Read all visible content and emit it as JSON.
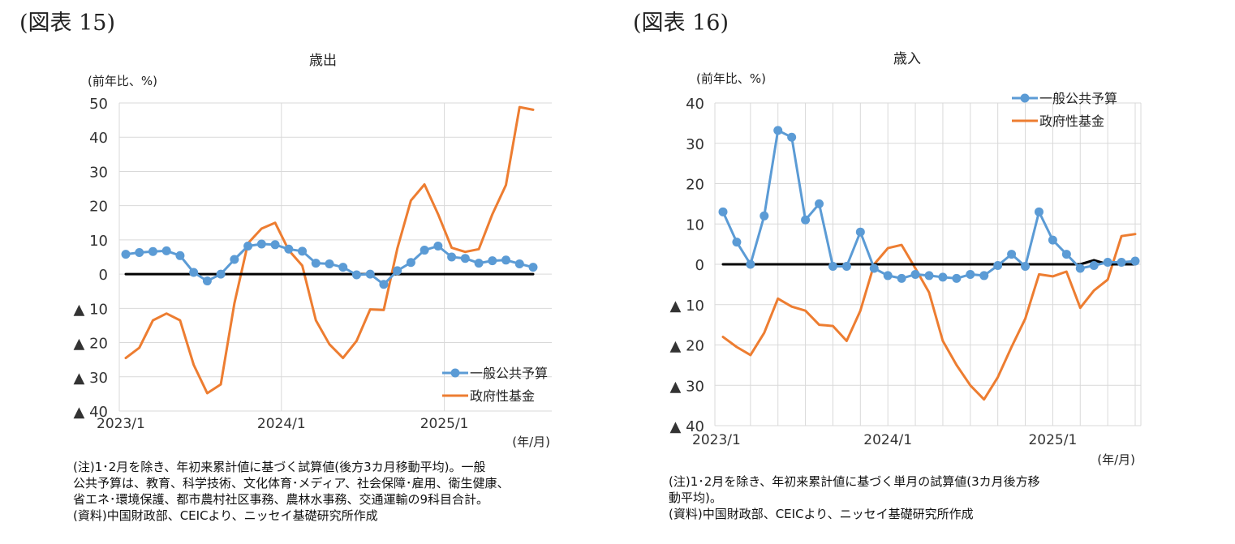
{
  "charts": [
    {
      "figure_label": "(図表 15)",
      "notes": [
        "(注)1･2月を除き、年初来累計値に基づく試算値(後方3カ月移動平均)。一般",
        "公共予算は、教育、科学技術、文化体育･メディア、社会保障･雇用、衛生健康、",
        "省エネ･環境保護、都市農村社区事務、農林水事務、交通運輸の9科目合計。",
        "(資料)中国財政部、CEICより、ニッセイ基礎研究所作成"
      ]
    },
    {
      "figure_label": "(図表 16)",
      "notes": [
        "(注)1･2月を除き、年初来累計値に基づく単月の試算値(3カ月後方移",
        "動平均)。",
        "(資料)中国財政部、CEICより、ニッセイ基礎研究所作成"
      ]
    }
  ],
  "chart_data": [
    {
      "type": "line",
      "title": "歳出",
      "ylabel": "(前年比、%)",
      "xlabel": "(年/月)",
      "ylim": [
        -40,
        50
      ],
      "yticks": [
        50,
        40,
        30,
        20,
        10,
        0,
        -10,
        -20,
        -30,
        -40
      ],
      "ytick_labels": [
        "50",
        "40",
        "30",
        "20",
        "10",
        "0",
        "▲ 10",
        "▲ 20",
        "▲ 30",
        "▲ 40"
      ],
      "x_count": 31,
      "xtick_labels": [
        {
          "index": 0,
          "label": "2023/1"
        },
        {
          "index": 12,
          "label": "2024/1"
        },
        {
          "index": 24,
          "label": "2025/1"
        }
      ],
      "vgrid_indices": [
        12,
        24
      ],
      "legend_position": "bottom-right",
      "series": [
        {
          "name": "一般公共予算",
          "color": "#5b9bd5",
          "marker": true,
          "values": [
            5.8,
            6.3,
            6.6,
            6.8,
            5.4,
            0.5,
            -2,
            0,
            4.3,
            8.2,
            8.8,
            8.6,
            7.3,
            6.7,
            3.2,
            3,
            2,
            -0.2,
            0,
            -3,
            1,
            3.4,
            7,
            8.2,
            5,
            4.6,
            3.2,
            3.9,
            4.1,
            3,
            2
          ]
        },
        {
          "name": "政府性基金",
          "color": "#ed7d31",
          "marker": false,
          "values": [
            -24.5,
            -21.5,
            -13.5,
            -11.5,
            -13.5,
            -26.5,
            -34.8,
            -32.2,
            -8.5,
            9,
            13.3,
            15,
            7,
            2.5,
            -13.5,
            -20.5,
            -24.5,
            -19.5,
            -10.3,
            -10.5,
            7.5,
            21.5,
            26.2,
            17.5,
            7.7,
            6.5,
            7.3,
            17.5,
            26,
            48.8,
            48
          ]
        },
        {
          "name": "",
          "color": "#000000",
          "marker": false,
          "values": [
            0,
            0,
            0,
            0,
            0,
            0,
            0,
            0,
            0,
            0,
            0,
            0,
            0,
            0,
            0,
            0,
            0,
            0,
            0,
            0,
            0,
            0,
            0,
            0,
            0,
            0,
            0,
            0,
            0,
            0,
            0
          ]
        }
      ]
    },
    {
      "type": "line",
      "title": "歳入",
      "ylabel": "(前年比、%)",
      "xlabel": "(年/月)",
      "ylim": [
        -40,
        40
      ],
      "yticks": [
        40,
        30,
        20,
        10,
        0,
        -10,
        -20,
        -30,
        -40
      ],
      "ytick_labels": [
        "40",
        "30",
        "20",
        "10",
        "0",
        "▲ 10",
        "▲ 20",
        "▲ 30",
        "▲ 40"
      ],
      "x_count": 31,
      "xtick_labels": [
        {
          "index": 0,
          "label": "2023/1"
        },
        {
          "index": 12,
          "label": "2024/1"
        },
        {
          "index": 24,
          "label": "2025/1"
        }
      ],
      "vgrid_indices": [
        2,
        4,
        6,
        8,
        10,
        12,
        14,
        16,
        18,
        20,
        22,
        24,
        26,
        28,
        30
      ],
      "legend_position": "top-right",
      "series": [
        {
          "name": "一般公共予算",
          "color": "#5b9bd5",
          "marker": true,
          "values": [
            13,
            5.5,
            0,
            12,
            33.2,
            31.5,
            11,
            15,
            -0.5,
            -0.5,
            8,
            -1,
            -2.8,
            -3.5,
            -2.5,
            -2.8,
            -3.2,
            -3.5,
            -2.5,
            -2.8,
            -0.3,
            2.5,
            -0.5,
            13,
            6,
            2.5,
            -1,
            -0.3,
            0.5,
            0.5,
            0.8
          ]
        },
        {
          "name": "政府性基金",
          "color": "#ed7d31",
          "marker": false,
          "values": [
            -18,
            -20.5,
            -22.5,
            -17,
            -8.5,
            -10.5,
            -11.5,
            -15,
            -15.3,
            -19,
            -11.5,
            0,
            4,
            4.8,
            -1,
            -7,
            -19,
            -25,
            -30,
            -33.5,
            -28,
            -20.5,
            -13.5,
            -2.5,
            -3,
            -1.8,
            -10.8,
            -6.5,
            -3.8,
            7,
            7.5
          ]
        },
        {
          "name": "",
          "color": "#000000",
          "marker": false,
          "values": [
            0,
            0,
            0,
            0,
            0,
            0,
            0,
            0,
            0,
            0,
            0,
            0,
            0,
            0,
            0,
            0,
            0,
            0,
            0,
            0,
            0,
            0,
            0,
            0,
            0,
            0,
            0,
            1,
            0,
            0,
            0
          ]
        }
      ]
    }
  ]
}
